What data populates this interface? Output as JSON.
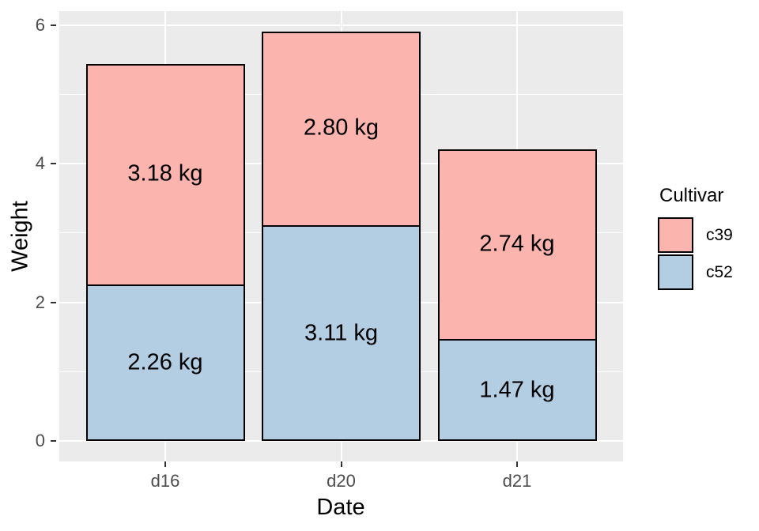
{
  "chart_data": {
    "type": "bar",
    "stacked": true,
    "title": "",
    "xlabel": "Date",
    "ylabel": "Weight",
    "categories": [
      "d16",
      "d20",
      "d21"
    ],
    "series": [
      {
        "name": "c39",
        "color": "#FBB4AE",
        "values": [
          3.18,
          2.8,
          2.74
        ],
        "labels": [
          "3.18 kg",
          "2.80 kg",
          "2.74 kg"
        ]
      },
      {
        "name": "c52",
        "color": "#B3CDE3",
        "values": [
          2.26,
          3.11,
          1.47
        ],
        "labels": [
          "2.26 kg",
          "3.11 kg",
          "1.47 kg"
        ]
      }
    ],
    "stack_order_bottom_to_top": [
      "c52",
      "c39"
    ],
    "stack_totals": [
      5.44,
      5.91,
      4.21
    ],
    "y_major_ticks": [
      0,
      2,
      4,
      6
    ],
    "y_minor_gridlines": [
      1,
      3,
      5
    ],
    "ylim": [
      0,
      6.2
    ],
    "grid": "on",
    "legend": {
      "title": "Cultivar",
      "position": "right",
      "entries": [
        {
          "label": "c39",
          "color": "#FBB4AE"
        },
        {
          "label": "c52",
          "color": "#B3CDE3"
        }
      ]
    },
    "colors": {
      "panel_background": "#EBEBEB",
      "gridline": "#FFFFFF",
      "bar_border": "#000000",
      "axis_text": "#4D4D4D",
      "title_text": "#000000",
      "figure_background": "#FFFFFF"
    }
  }
}
